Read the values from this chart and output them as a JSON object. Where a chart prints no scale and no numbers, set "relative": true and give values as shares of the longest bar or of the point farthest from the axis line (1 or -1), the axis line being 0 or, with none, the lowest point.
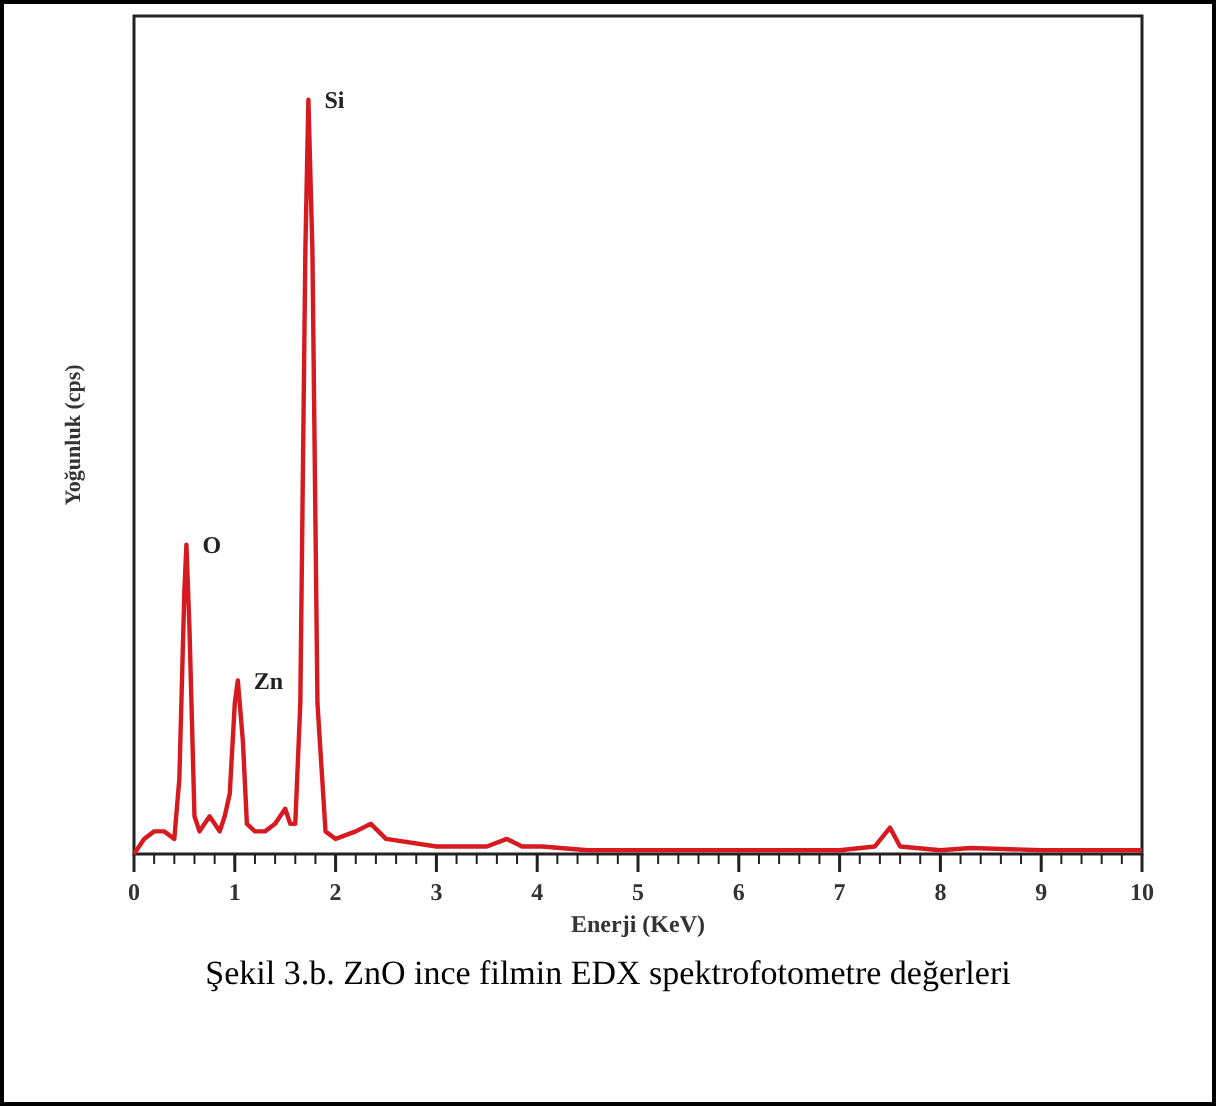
{
  "chart_data": {
    "type": "line",
    "xlabel": "Enerji (KeV)",
    "ylabel": "Yoğunluk (cps)",
    "relative": true,
    "xlim": [
      0,
      10
    ],
    "xticks": [
      0,
      1,
      2,
      3,
      4,
      5,
      6,
      7,
      8,
      9,
      10
    ],
    "line_style": "solid",
    "x": [
      0,
      0.1,
      0.2,
      0.3,
      0.4,
      0.45,
      0.5,
      0.52,
      0.55,
      0.6,
      0.65,
      0.7,
      0.75,
      0.8,
      0.85,
      0.9,
      0.95,
      1.0,
      1.03,
      1.08,
      1.12,
      1.2,
      1.3,
      1.4,
      1.5,
      1.55,
      1.6,
      1.65,
      1.7,
      1.73,
      1.77,
      1.82,
      1.9,
      2.0,
      2.2,
      2.35,
      2.5,
      3.0,
      3.5,
      3.7,
      3.85,
      4.05,
      4.5,
      5,
      6,
      7,
      7.35,
      7.5,
      7.6,
      8,
      8.3,
      9,
      10
    ],
    "series": [
      {
        "color": "#d71920",
        "values": [
          0,
          0.02,
          0.03,
          0.03,
          0.02,
          0.1,
          0.35,
          0.41,
          0.3,
          0.05,
          0.03,
          0.04,
          0.05,
          0.04,
          0.03,
          0.05,
          0.08,
          0.2,
          0.23,
          0.15,
          0.04,
          0.03,
          0.03,
          0.04,
          0.06,
          0.04,
          0.04,
          0.2,
          0.8,
          1.0,
          0.8,
          0.2,
          0.03,
          0.02,
          0.03,
          0.04,
          0.02,
          0.01,
          0.01,
          0.02,
          0.01,
          0.01,
          0.005,
          0.005,
          0.005,
          0.005,
          0.01,
          0.035,
          0.01,
          0.005,
          0.008,
          0.005,
          0.005
        ]
      }
    ],
    "annotations": [
      {
        "text": "O",
        "x": 0.52,
        "y": 0.41
      },
      {
        "text": "Zn",
        "x": 1.03,
        "y": 0.23
      },
      {
        "text": "Si",
        "x": 1.73,
        "y": 1.0
      },
      "Şekil 3.b. ZnO ince filmin EDX spektrofotometre değerleri"
    ]
  }
}
